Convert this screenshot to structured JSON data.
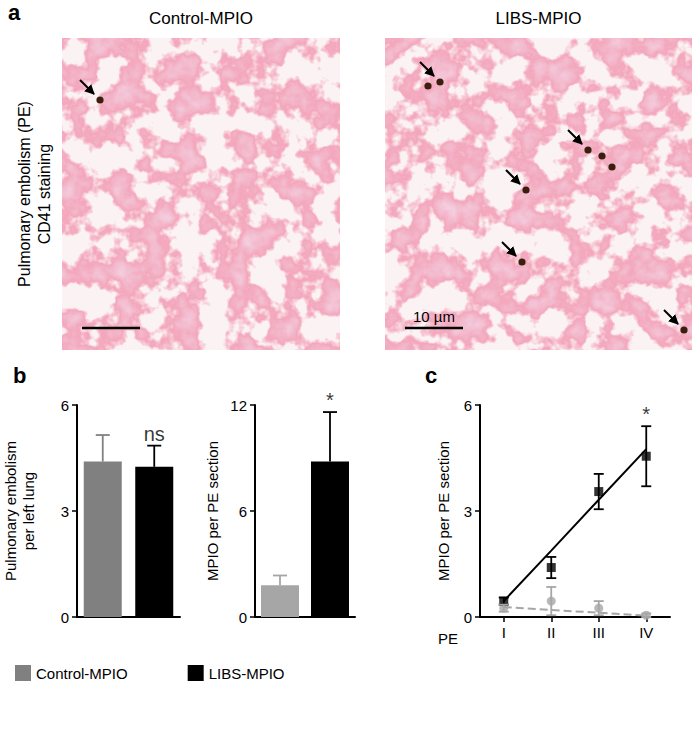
{
  "panel_a": {
    "title": "a",
    "row_label": [
      "Pulmonary embolism (PE)",
      "CD41 staining"
    ],
    "images": [
      {
        "title": "Control-MPIO"
      },
      {
        "title": "LIBS-MPIO",
        "scale_bar": "10 µm"
      }
    ]
  },
  "chart_data": [
    {
      "type": "bar",
      "title": "b",
      "categories": [
        null,
        null
      ],
      "series": [
        {
          "name": "Control-MPIO",
          "color": "#808080",
          "values": [
            4.4,
            null
          ],
          "errors": [
            0.75,
            null
          ]
        },
        {
          "name": "LIBS-MPIO",
          "color": "#000000",
          "values": [
            null,
            4.25
          ],
          "errors": [
            null,
            0.6
          ]
        }
      ],
      "y_label": "Pulmonary embolism\nper left lung",
      "ylim": [
        0,
        6
      ],
      "yticks": [
        0,
        3,
        6
      ],
      "grid": false,
      "tick_labels": "y",
      "legend": "bottom",
      "annotations": [
        {
          "text": "ns",
          "series": "LIBS-MPIO"
        }
      ]
    },
    {
      "type": "bar",
      "categories": [
        null,
        null
      ],
      "series": [
        {
          "name": "Control-MPIO",
          "color": "#a6a6a6",
          "values": [
            1.8,
            null
          ],
          "errors": [
            0.55,
            null
          ]
        },
        {
          "name": "LIBS-MPIO",
          "color": "#000000",
          "values": [
            null,
            8.8
          ],
          "errors": [
            null,
            2.8
          ]
        }
      ],
      "y_label": "MPIO per PE section",
      "ylim": [
        0,
        12
      ],
      "yticks": [
        0,
        6,
        12
      ],
      "grid": false,
      "tick_labels": "y",
      "annotations": [
        {
          "text": "*",
          "series": "LIBS-MPIO"
        }
      ]
    },
    {
      "type": "scatter",
      "title": "c",
      "x_label": "PE",
      "categories": [
        "I",
        "II",
        "III",
        "IV"
      ],
      "series": [
        {
          "name": "LIBS-MPIO",
          "type": "scatter",
          "marker": "square",
          "color": "#000000",
          "values": [
            0.45,
            1.4,
            3.55,
            4.55
          ],
          "errors": [
            0.1,
            0.3,
            0.5,
            0.85
          ]
        },
        {
          "name": "Control-MPIO",
          "type": "scatter",
          "marker": "circle",
          "color": "#a6a6a6",
          "values": [
            0.25,
            0.45,
            0.25,
            0.05
          ],
          "errors": [
            0.1,
            0.4,
            0.2,
            0.05
          ]
        },
        {
          "type": "line",
          "marker": "none",
          "line_style": "solid",
          "color": "#000000",
          "values": [
            0.45,
            1.88,
            3.32,
            4.75
          ]
        },
        {
          "type": "line",
          "marker": "none",
          "line_style": "dashed",
          "color": "#a6a6a6",
          "values": [
            0.28,
            0.2,
            0.12,
            0.04
          ]
        }
      ],
      "y_label": "MPIO per PE section",
      "ylim": [
        0,
        6
      ],
      "yticks": [
        0,
        3,
        6
      ],
      "grid": false,
      "tick_labels": true,
      "annotations": [
        {
          "text": "*",
          "series": "LIBS-MPIO",
          "category": "IV"
        }
      ]
    }
  ]
}
